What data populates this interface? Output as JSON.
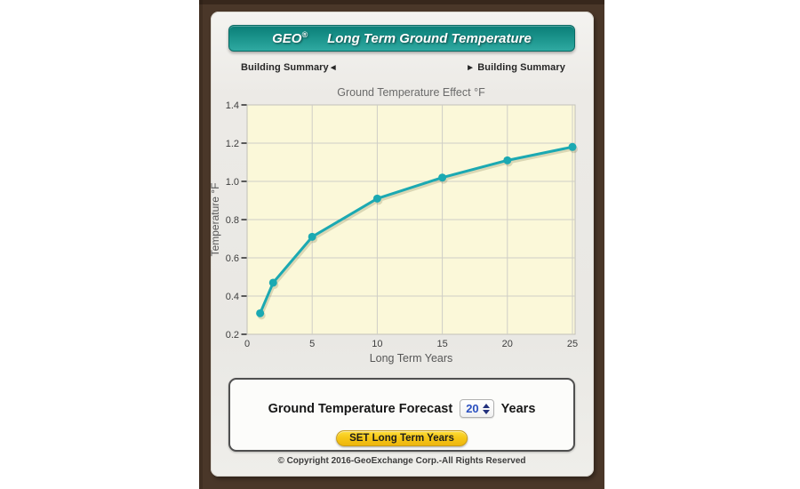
{
  "header": {
    "brand": "GEO",
    "registered": "®",
    "title": "Long Term Ground Temperature"
  },
  "nav": {
    "left_label": "Building Summary",
    "left_arrow": "◄",
    "right_arrow": "►",
    "right_label": "Building Summary"
  },
  "chart_data": {
    "type": "line",
    "title": "Ground Temperature Effect °F",
    "xlabel": "Long Term Years",
    "ylabel": "Temperature °F",
    "x": [
      1,
      2,
      5,
      10,
      15,
      20,
      25
    ],
    "y": [
      0.31,
      0.47,
      0.71,
      0.91,
      1.02,
      1.11,
      1.18
    ],
    "xlim": [
      0,
      25
    ],
    "ylim": [
      0.2,
      1.4
    ],
    "x_ticks": [
      0,
      5,
      10,
      15,
      20,
      25
    ],
    "y_ticks": [
      0.2,
      0.4,
      0.6,
      0.8,
      1.0,
      1.2,
      1.4
    ],
    "grid": true,
    "legend": "none",
    "line_color": "#1ba9b2",
    "plot_bg": "#fbf8d9",
    "grid_color": "#cfcec6",
    "marker": "circle"
  },
  "forecast": {
    "label": "Ground Temperature Forecast",
    "value": "20",
    "unit": "Years",
    "button_label": "SET Long Term Years"
  },
  "footer": {
    "copyright": "© Copyright 2016-GeoExchange Corp.-All Rights Reserved"
  },
  "colors": {
    "frame_brown": "#4a3729",
    "banner_teal": "#1d968e",
    "button_yellow": "#f6c818",
    "select_value_blue": "#2b50c0"
  }
}
